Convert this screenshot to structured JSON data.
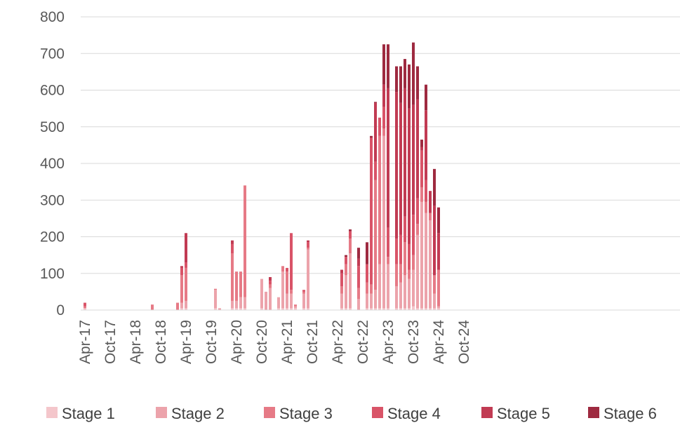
{
  "chart_data": {
    "type": "bar",
    "stacked": true,
    "title": "",
    "xlabel": "",
    "ylabel": "",
    "ylim": [
      0,
      800
    ],
    "yticks": [
      0,
      100,
      200,
      300,
      400,
      500,
      600,
      700,
      800
    ],
    "grid": "horizontal",
    "legend_position": "bottom",
    "x_tick_labels": [
      "Apr-17",
      "Oct-17",
      "Apr-18",
      "Oct-18",
      "Apr-19",
      "Oct-19",
      "Apr-20",
      "Oct-20",
      "Apr-21",
      "Oct-21",
      "Apr-22",
      "Oct-22",
      "Apr-23",
      "Oct-23",
      "Apr-24",
      "Oct-24"
    ],
    "colors": [
      "#f4c6cb",
      "#eca3ab",
      "#e67a86",
      "#d95468",
      "#c13b53",
      "#9e2a40"
    ],
    "categories": [
      "Apr-17",
      "May-17",
      "Jun-17",
      "Jul-17",
      "Aug-17",
      "Sep-17",
      "Oct-17",
      "Nov-17",
      "Dec-17",
      "Jan-18",
      "Feb-18",
      "Mar-18",
      "Apr-18",
      "May-18",
      "Jun-18",
      "Jul-18",
      "Aug-18",
      "Sep-18",
      "Oct-18",
      "Nov-18",
      "Dec-18",
      "Jan-19",
      "Feb-19",
      "Mar-19",
      "Apr-19",
      "May-19",
      "Jun-19",
      "Jul-19",
      "Aug-19",
      "Sep-19",
      "Oct-19",
      "Nov-19",
      "Dec-19",
      "Jan-20",
      "Feb-20",
      "Mar-20",
      "Apr-20",
      "May-20",
      "Jun-20",
      "Jul-20",
      "Aug-20",
      "Sep-20",
      "Oct-20",
      "Nov-20",
      "Dec-20",
      "Jan-21",
      "Feb-21",
      "Mar-21",
      "Apr-21",
      "May-21",
      "Jun-21",
      "Jul-21",
      "Aug-21",
      "Sep-21",
      "Oct-21",
      "Nov-21",
      "Dec-21",
      "Jan-22",
      "Feb-22",
      "Mar-22",
      "Apr-22",
      "May-22",
      "Jun-22",
      "Jul-22",
      "Aug-22",
      "Sep-22",
      "Oct-22",
      "Nov-22",
      "Dec-22",
      "Jan-23",
      "Feb-23",
      "Mar-23",
      "Apr-23",
      "May-23",
      "Jun-23",
      "Jul-23",
      "Aug-23",
      "Sep-23",
      "Oct-23",
      "Nov-23",
      "Dec-23",
      "Jan-24",
      "Feb-24",
      "Mar-24",
      "Apr-24",
      "May-24",
      "Jun-24",
      "Jul-24",
      "Aug-24",
      "Sep-24",
      "Oct-24"
    ],
    "series": [
      {
        "name": "Stage 1",
        "values": [
          5,
          0,
          0,
          0,
          0,
          0,
          0,
          0,
          0,
          0,
          0,
          0,
          0,
          0,
          0,
          0,
          0,
          0,
          0,
          0,
          0,
          0,
          0,
          5,
          5,
          0,
          0,
          0,
          0,
          0,
          0,
          5,
          0,
          0,
          0,
          5,
          5,
          5,
          5,
          0,
          0,
          0,
          5,
          0,
          0,
          0,
          5,
          5,
          5,
          5,
          5,
          0,
          5,
          5,
          0,
          0,
          0,
          0,
          0,
          0,
          0,
          5,
          5,
          5,
          0,
          0,
          0,
          5,
          5,
          5,
          5,
          5,
          5,
          0,
          5,
          5,
          5,
          5,
          10,
          5,
          5,
          5,
          5,
          5,
          5,
          0,
          0,
          0,
          0,
          0,
          0
        ]
      },
      {
        "name": "Stage 2",
        "values": [
          0,
          0,
          0,
          0,
          0,
          0,
          0,
          0,
          0,
          0,
          0,
          0,
          0,
          0,
          0,
          0,
          0,
          0,
          0,
          0,
          0,
          0,
          0,
          15,
          20,
          0,
          0,
          0,
          0,
          0,
          0,
          50,
          5,
          0,
          0,
          20,
          20,
          30,
          30,
          0,
          0,
          0,
          80,
          50,
          60,
          0,
          30,
          100,
          40,
          40,
          5,
          0,
          40,
          160,
          0,
          0,
          0,
          0,
          0,
          0,
          0,
          40,
          90,
          150,
          0,
          30,
          0,
          40,
          40,
          50,
          120,
          470,
          120,
          0,
          60,
          70,
          90,
          80,
          100,
          200,
          290,
          260,
          240,
          40,
          5,
          0,
          0,
          0,
          0,
          0,
          0
        ]
      },
      {
        "name": "Stage 3",
        "values": [
          5,
          0,
          0,
          0,
          0,
          0,
          0,
          0,
          0,
          0,
          0,
          0,
          0,
          0,
          0,
          0,
          15,
          0,
          0,
          0,
          0,
          0,
          20,
          75,
          90,
          0,
          0,
          0,
          0,
          0,
          0,
          3,
          0,
          0,
          0,
          130,
          80,
          70,
          305,
          0,
          0,
          0,
          0,
          0,
          10,
          0,
          0,
          15,
          60,
          10,
          5,
          0,
          5,
          5,
          0,
          0,
          0,
          0,
          0,
          0,
          0,
          20,
          30,
          40,
          0,
          30,
          0,
          30,
          25,
          300,
          350,
          20,
          20,
          0,
          60,
          50,
          90,
          25,
          40,
          30,
          40,
          30,
          20,
          50,
          100,
          0,
          0,
          0,
          0,
          0,
          0
        ]
      },
      {
        "name": "Stage 4",
        "values": [
          10,
          0,
          0,
          0,
          0,
          0,
          0,
          0,
          0,
          0,
          0,
          0,
          0,
          0,
          0,
          0,
          0,
          0,
          0,
          0,
          0,
          0,
          0,
          20,
          15,
          0,
          0,
          0,
          0,
          0,
          0,
          0,
          0,
          0,
          0,
          25,
          0,
          0,
          0,
          0,
          0,
          0,
          0,
          0,
          10,
          0,
          0,
          0,
          10,
          155,
          0,
          0,
          5,
          15,
          0,
          0,
          0,
          0,
          0,
          0,
          0,
          35,
          20,
          20,
          0,
          60,
          0,
          50,
          400,
          50,
          50,
          60,
          80,
          0,
          70,
          80,
          70,
          70,
          110,
          70,
          100,
          60,
          0,
          0,
          0,
          0,
          0,
          0,
          0,
          0,
          0
        ]
      },
      {
        "name": "Stage 5",
        "values": [
          0,
          0,
          0,
          0,
          0,
          0,
          0,
          0,
          0,
          0,
          0,
          0,
          0,
          0,
          0,
          0,
          0,
          0,
          0,
          0,
          0,
          0,
          0,
          5,
          80,
          0,
          0,
          0,
          0,
          0,
          0,
          0,
          0,
          0,
          0,
          10,
          0,
          0,
          0,
          0,
          0,
          0,
          0,
          0,
          10,
          0,
          0,
          0,
          0,
          0,
          0,
          0,
          0,
          5,
          0,
          0,
          0,
          0,
          0,
          0,
          0,
          10,
          0,
          0,
          0,
          20,
          0,
          0,
          0,
          160,
          0,
          60,
          380,
          0,
          400,
          360,
          350,
          370,
          300,
          270,
          10,
          190,
          60,
          190,
          100,
          0,
          0,
          0,
          0,
          0,
          0
        ]
      },
      {
        "name": "Stage 6",
        "values": [
          0,
          0,
          0,
          0,
          0,
          0,
          0,
          0,
          0,
          0,
          0,
          0,
          0,
          0,
          0,
          0,
          0,
          0,
          0,
          0,
          0,
          0,
          0,
          0,
          0,
          0,
          0,
          0,
          0,
          0,
          0,
          0,
          0,
          0,
          0,
          0,
          0,
          0,
          0,
          0,
          0,
          0,
          0,
          0,
          0,
          0,
          0,
          0,
          0,
          0,
          0,
          0,
          0,
          0,
          0,
          0,
          0,
          0,
          0,
          0,
          0,
          0,
          5,
          5,
          0,
          30,
          0,
          60,
          5,
          3,
          0,
          110,
          120,
          0,
          70,
          100,
          80,
          120,
          170,
          90,
          20,
          70,
          0,
          100,
          70,
          0,
          0,
          0,
          0,
          0,
          0
        ]
      }
    ]
  }
}
